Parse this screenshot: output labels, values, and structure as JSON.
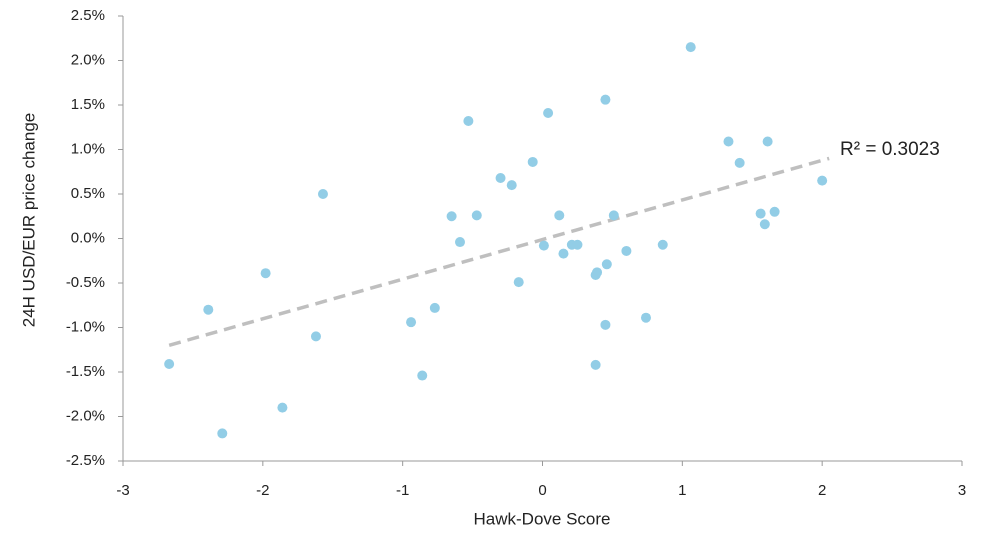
{
  "chart_data": {
    "type": "scatter",
    "x_label": "Hawk-Dove Score",
    "y_label": "24H USD/EUR  price change",
    "annotation": "R² = 0.3023",
    "color": "#92cde6",
    "trend_color": "#bfbfbf",
    "x": [
      -2.67,
      -2.39,
      -2.29,
      -1.98,
      -1.86,
      -1.62,
      -1.57,
      -0.94,
      -0.86,
      -0.77,
      -0.65,
      -0.59,
      -0.53,
      -0.47,
      -0.3,
      -0.22,
      -0.17,
      -0.07,
      0.01,
      0.04,
      0.12,
      0.15,
      0.21,
      0.25,
      0.38,
      0.39,
      0.38,
      0.45,
      0.45,
      0.46,
      0.51,
      0.6,
      0.74,
      0.86,
      1.06,
      1.33,
      1.41,
      1.56,
      1.59,
      1.61,
      1.66,
      2.0
    ],
    "values": [
      -1.41,
      -0.8,
      -2.19,
      -0.39,
      -1.9,
      -1.1,
      0.5,
      -0.94,
      -1.54,
      -0.78,
      0.25,
      -0.04,
      1.32,
      0.26,
      0.68,
      0.6,
      -0.49,
      0.86,
      -0.08,
      1.41,
      0.26,
      -0.17,
      -0.07,
      -0.07,
      -0.41,
      -0.38,
      -1.42,
      1.56,
      -0.97,
      -0.29,
      0.26,
      -0.14,
      -0.89,
      -0.07,
      2.15,
      1.09,
      0.85,
      0.28,
      0.16,
      1.09,
      0.3,
      0.65
    ],
    "trendline": {
      "x": [
        -2.67,
        2.05
      ],
      "y": [
        -1.2,
        0.9
      ]
    },
    "xlim": [
      -3,
      3
    ],
    "xticks": [
      -3,
      -2,
      -1,
      0,
      1,
      2,
      3
    ],
    "ylim": [
      -2.5,
      2.5
    ],
    "yticks": [
      {
        "value": -2.5,
        "label": "-2.5%"
      },
      {
        "value": -2,
        "label": "-2.0%"
      },
      {
        "value": -1.5,
        "label": "-1.5%"
      },
      {
        "value": -1,
        "label": "-1.0%"
      },
      {
        "value": -0.5,
        "label": "-0.5%"
      },
      {
        "value": 0,
        "label": "0.0%"
      },
      {
        "value": 0.5,
        "label": "0.5%"
      },
      {
        "value": 1,
        "label": "1.0%"
      },
      {
        "value": 1.5,
        "label": "1.5%"
      },
      {
        "value": 2,
        "label": "2.0%"
      },
      {
        "value": 2.5,
        "label": "2.5%"
      }
    ],
    "grid": false
  }
}
